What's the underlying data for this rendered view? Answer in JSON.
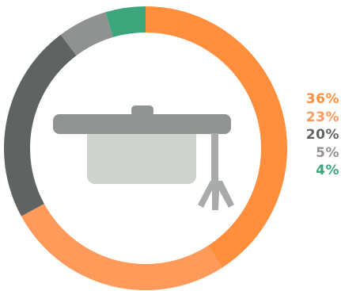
{
  "chart_data": {
    "type": "pie",
    "style": "donut",
    "slices": [
      {
        "value": 36,
        "label": "36%",
        "color": "#FF8F3D"
      },
      {
        "value": 23,
        "label": "23%",
        "color": "#FF9A5A"
      },
      {
        "value": 20,
        "label": "20%",
        "color": "#5F6362"
      },
      {
        "value": 5,
        "label": "5%",
        "color": "#909292"
      },
      {
        "value": 4,
        "label": "4%",
        "color": "#3BA57B"
      }
    ],
    "legend_position": "right"
  },
  "center_icon": "graduation-cap-icon",
  "icon_colors": {
    "cap": "#909392",
    "base": "#CED3CE",
    "tassel": "#A9ABAA"
  }
}
